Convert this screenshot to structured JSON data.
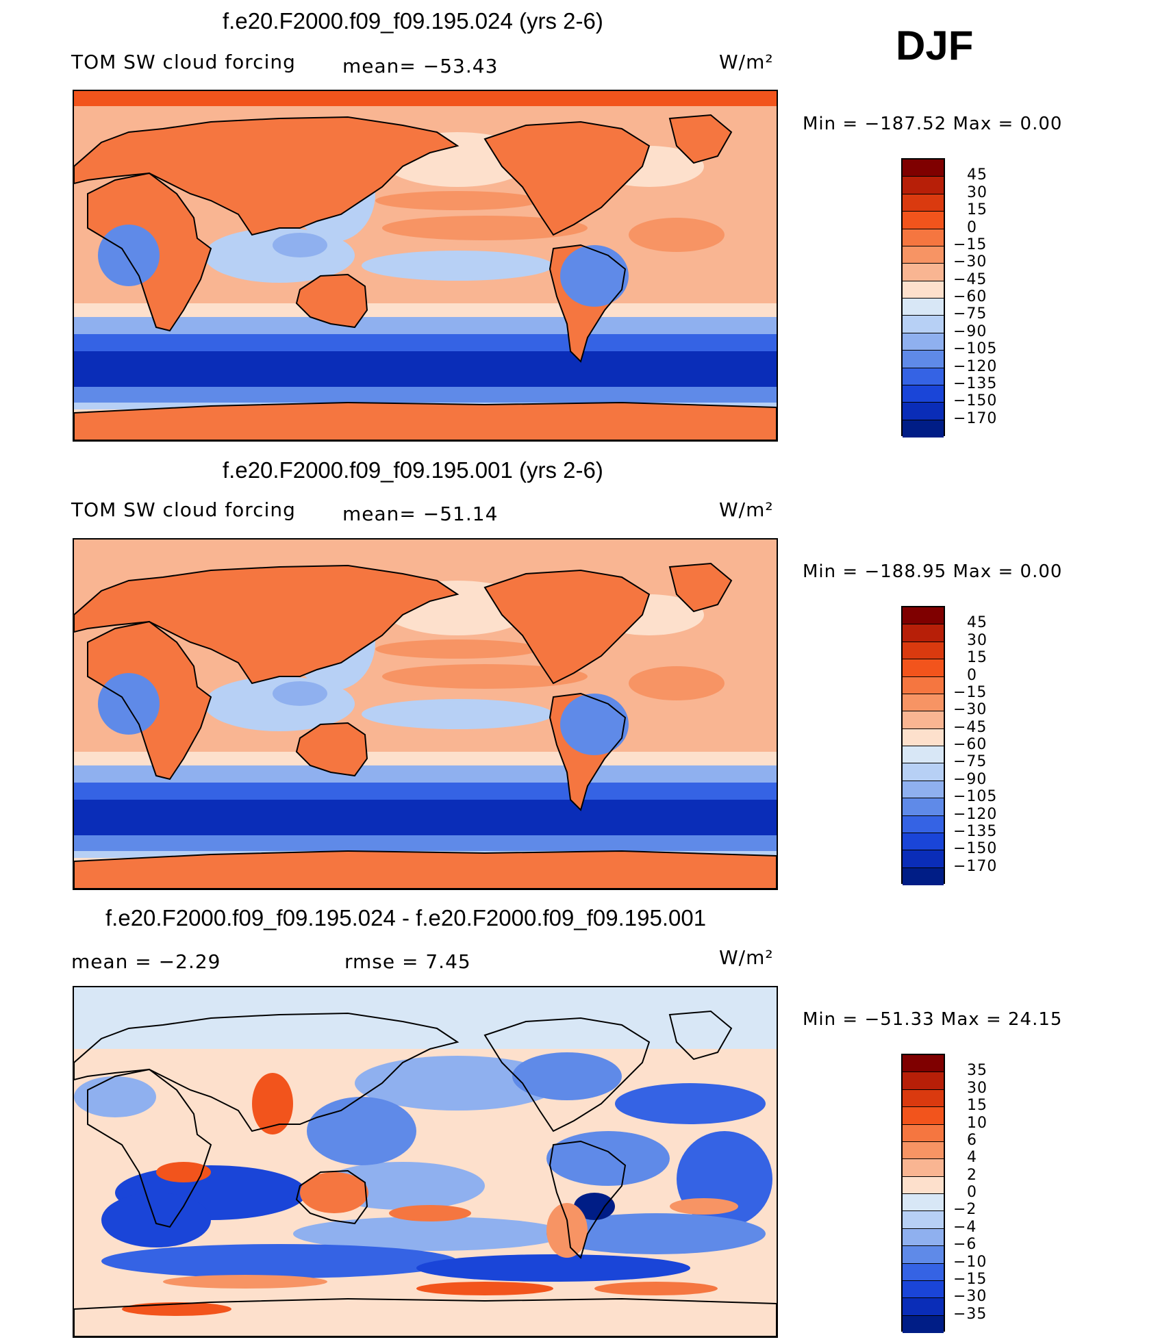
{
  "season_label": "DJF",
  "panels": [
    {
      "title": "f.e20.F2000.f09_f09.195.024 (yrs 2-6)",
      "left_text": "TOM SW cloud forcing",
      "center_text": "mean=  −53.43",
      "units": "W/m²",
      "minmax": "Min  =  −187.52  Max  =      0.00",
      "colorbar_labels": [
        "45",
        "30",
        "15",
        "0",
        "−15",
        "−30",
        "−45",
        "−60",
        "−75",
        "−90",
        "−105",
        "−120",
        "−135",
        "−150",
        "−170"
      ]
    },
    {
      "title": "f.e20.F2000.f09_f09.195.001 (yrs 2-6)",
      "left_text": "TOM SW cloud forcing",
      "center_text": "mean=  −51.14",
      "units": "W/m²",
      "minmax": "Min  =  −188.95  Max  =      0.00",
      "colorbar_labels": [
        "45",
        "30",
        "15",
        "0",
        "−15",
        "−30",
        "−45",
        "−60",
        "−75",
        "−90",
        "−105",
        "−120",
        "−135",
        "−150",
        "−170"
      ]
    },
    {
      "title": "f.e20.F2000.f09_f09.195.024 - f.e20.F2000.f09_f09.195.001",
      "left_text": "mean  =     −2.29",
      "center_text": "rmse  =     7.45",
      "units": "W/m²",
      "minmax": "Min  =  −51.33  Max  =   24.15",
      "colorbar_labels": [
        "35",
        "30",
        "15",
        "10",
        "6",
        "4",
        "2",
        "0",
        "−2",
        "−4",
        "−6",
        "−10",
        "−15",
        "−30",
        "−35"
      ]
    }
  ],
  "colors": {
    "model_scale": [
      "#7f0000",
      "#b71f08",
      "#da3a0f",
      "#f2541c",
      "#f57640",
      "#f79464",
      "#f9b592",
      "#fde0cc",
      "#d8e7f6",
      "#b7d0f5",
      "#8fb0ef",
      "#5f8ae8",
      "#3563e4",
      "#1a45d8",
      "#0a2db8",
      "#001d86"
    ],
    "diff_scale": [
      "#7f0000",
      "#b71f08",
      "#da3a0f",
      "#f2541c",
      "#f57640",
      "#f79464",
      "#f9b592",
      "#fde0cc",
      "#d8e7f6",
      "#b7d0f5",
      "#8fb0ef",
      "#5f8ae8",
      "#3563e4",
      "#1a45d8",
      "#0a2db8",
      "#001d86"
    ],
    "coastline": "#000000"
  }
}
